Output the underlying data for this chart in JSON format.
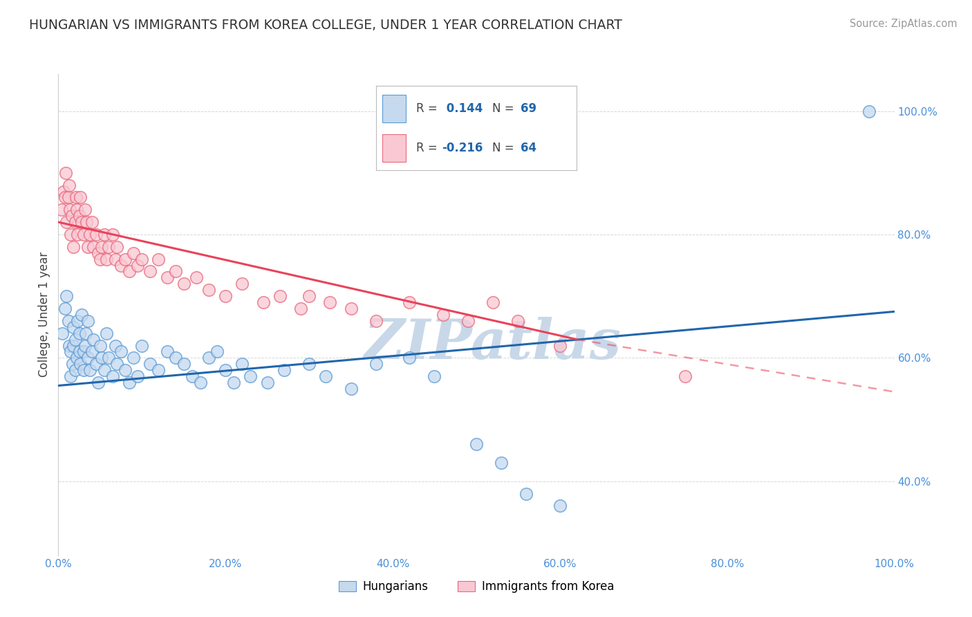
{
  "title": "HUNGARIAN VS IMMIGRANTS FROM KOREA COLLEGE, UNDER 1 YEAR CORRELATION CHART",
  "source": "Source: ZipAtlas.com",
  "ylabel": "College, Under 1 year",
  "xlim": [
    0.0,
    1.0
  ],
  "ylim": [
    0.28,
    1.06
  ],
  "xtick_vals": [
    0.0,
    0.2,
    0.4,
    0.6,
    0.8,
    1.0
  ],
  "xtick_labels": [
    "0.0%",
    "20.0%",
    "40.0%",
    "60.0%",
    "80.0%",
    "100.0%"
  ],
  "ytick_vals": [
    0.4,
    0.6,
    0.8,
    1.0
  ],
  "ytick_labels": [
    "40.0%",
    "60.0%",
    "80.0%",
    "100.0%"
  ],
  "blue_R": 0.144,
  "blue_N": 69,
  "pink_R": -0.216,
  "pink_N": 64,
  "blue_fill": "#c5d9ef",
  "blue_edge": "#5b9bd5",
  "pink_fill": "#f9c8d3",
  "pink_edge": "#e8697d",
  "blue_line_color": "#2166ac",
  "pink_line_color": "#e8435a",
  "tick_color": "#4a90d9",
  "background_color": "#ffffff",
  "blue_trend": [
    0.0,
    1.0,
    0.555,
    0.675
  ],
  "pink_trend_solid": [
    0.0,
    0.62,
    0.82,
    0.63
  ],
  "pink_trend_dash": [
    0.62,
    1.0,
    0.63,
    0.545
  ],
  "blue_scatter_x": [
    0.005,
    0.008,
    0.01,
    0.012,
    0.013,
    0.015,
    0.015,
    0.017,
    0.018,
    0.018,
    0.02,
    0.02,
    0.022,
    0.023,
    0.025,
    0.025,
    0.026,
    0.028,
    0.03,
    0.03,
    0.032,
    0.033,
    0.035,
    0.035,
    0.038,
    0.04,
    0.042,
    0.045,
    0.048,
    0.05,
    0.052,
    0.055,
    0.058,
    0.06,
    0.065,
    0.068,
    0.07,
    0.075,
    0.08,
    0.085,
    0.09,
    0.095,
    0.1,
    0.11,
    0.12,
    0.13,
    0.14,
    0.15,
    0.16,
    0.17,
    0.18,
    0.19,
    0.2,
    0.21,
    0.22,
    0.23,
    0.25,
    0.27,
    0.3,
    0.32,
    0.35,
    0.38,
    0.42,
    0.45,
    0.5,
    0.53,
    0.56,
    0.6,
    0.97
  ],
  "blue_scatter_y": [
    0.64,
    0.68,
    0.7,
    0.66,
    0.62,
    0.61,
    0.57,
    0.59,
    0.65,
    0.62,
    0.58,
    0.63,
    0.6,
    0.66,
    0.61,
    0.64,
    0.59,
    0.67,
    0.61,
    0.58,
    0.62,
    0.64,
    0.6,
    0.66,
    0.58,
    0.61,
    0.63,
    0.59,
    0.56,
    0.62,
    0.6,
    0.58,
    0.64,
    0.6,
    0.57,
    0.62,
    0.59,
    0.61,
    0.58,
    0.56,
    0.6,
    0.57,
    0.62,
    0.59,
    0.58,
    0.61,
    0.6,
    0.59,
    0.57,
    0.56,
    0.6,
    0.61,
    0.58,
    0.56,
    0.59,
    0.57,
    0.56,
    0.58,
    0.59,
    0.57,
    0.55,
    0.59,
    0.6,
    0.57,
    0.46,
    0.43,
    0.38,
    0.36,
    1.0
  ],
  "pink_scatter_x": [
    0.004,
    0.006,
    0.008,
    0.009,
    0.01,
    0.012,
    0.013,
    0.014,
    0.015,
    0.016,
    0.018,
    0.02,
    0.021,
    0.022,
    0.023,
    0.025,
    0.026,
    0.028,
    0.03,
    0.032,
    0.034,
    0.035,
    0.038,
    0.04,
    0.042,
    0.045,
    0.048,
    0.05,
    0.052,
    0.055,
    0.058,
    0.06,
    0.065,
    0.068,
    0.07,
    0.075,
    0.08,
    0.085,
    0.09,
    0.095,
    0.1,
    0.11,
    0.12,
    0.13,
    0.14,
    0.15,
    0.165,
    0.18,
    0.2,
    0.22,
    0.245,
    0.265,
    0.29,
    0.3,
    0.325,
    0.35,
    0.38,
    0.42,
    0.46,
    0.49,
    0.52,
    0.55,
    0.6,
    0.75
  ],
  "pink_scatter_y": [
    0.84,
    0.87,
    0.86,
    0.9,
    0.82,
    0.86,
    0.88,
    0.84,
    0.8,
    0.83,
    0.78,
    0.82,
    0.86,
    0.84,
    0.8,
    0.83,
    0.86,
    0.82,
    0.8,
    0.84,
    0.82,
    0.78,
    0.8,
    0.82,
    0.78,
    0.8,
    0.77,
    0.76,
    0.78,
    0.8,
    0.76,
    0.78,
    0.8,
    0.76,
    0.78,
    0.75,
    0.76,
    0.74,
    0.77,
    0.75,
    0.76,
    0.74,
    0.76,
    0.73,
    0.74,
    0.72,
    0.73,
    0.71,
    0.7,
    0.72,
    0.69,
    0.7,
    0.68,
    0.7,
    0.69,
    0.68,
    0.66,
    0.69,
    0.67,
    0.66,
    0.69,
    0.66,
    0.62,
    0.57
  ],
  "legend_blue_label": "R =  0.144   N = 69",
  "legend_pink_label": "R = -0.216   N = 64",
  "bottom_legend": [
    "Hungarians",
    "Immigrants from Korea"
  ],
  "watermark_text": "ZIPatlas",
  "watermark_color": "#c8d8e8",
  "watermark_fontsize": 58
}
